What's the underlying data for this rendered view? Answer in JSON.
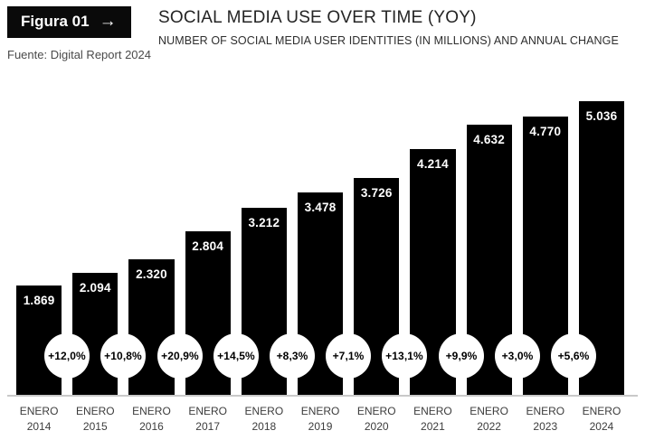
{
  "figure": {
    "badge_label": "Figura 01",
    "badge_arrow": "→",
    "source": "Fuente: Digital Report 2024",
    "title": "SOCIAL MEDIA USE OVER TIME (YOY)",
    "subtitle": "NUMBER OF SOCIAL MEDIA USER IDENTITIES (IN MILLIONS) AND ANNUAL CHANGE"
  },
  "chart_data": {
    "type": "bar",
    "title": "SOCIAL MEDIA USE OVER TIME (YOY)",
    "subtitle": "NUMBER OF SOCIAL MEDIA USER IDENTITIES (IN MILLIONS) AND ANNUAL CHANGE",
    "unit": "millions of social media user identities",
    "categories": [
      "ENERO 2014",
      "ENERO 2015",
      "ENERO 2016",
      "ENERO 2017",
      "ENERO 2018",
      "ENERO 2019",
      "ENERO 2020",
      "ENERO 2021",
      "ENERO 2022",
      "ENERO 2023",
      "ENERO 2024"
    ],
    "values": [
      1869,
      2094,
      2320,
      2804,
      3212,
      3478,
      3726,
      4214,
      4632,
      4770,
      5036
    ],
    "value_labels": [
      "1.869",
      "2.094",
      "2.320",
      "2.804",
      "3.212",
      "3.478",
      "3.726",
      "4.214",
      "4.632",
      "4.770",
      "5.036"
    ],
    "annual_change_labels": [
      "+12,0%",
      "+10,8%",
      "+20,9%",
      "+14,5%",
      "+8,3%",
      "+7,1%",
      "+13,1%",
      "+9,9%",
      "+3,0%",
      "+5,6%"
    ],
    "ylim": [
      0,
      5036
    ],
    "grid": false,
    "legend": false,
    "bar_color": "#000000",
    "value_label_color": "#ffffff",
    "change_badge_bg": "#ffffff",
    "change_badge_text_color": "#000000",
    "axis_line_color": "#c9c9c9",
    "tick_label_color": "#3c3c3c"
  },
  "colors": {
    "background": "#ffffff",
    "badge_bg": "#0a0a0a",
    "badge_text": "#ffffff",
    "title_text": "#242424",
    "source_text": "#4a4a4a"
  }
}
